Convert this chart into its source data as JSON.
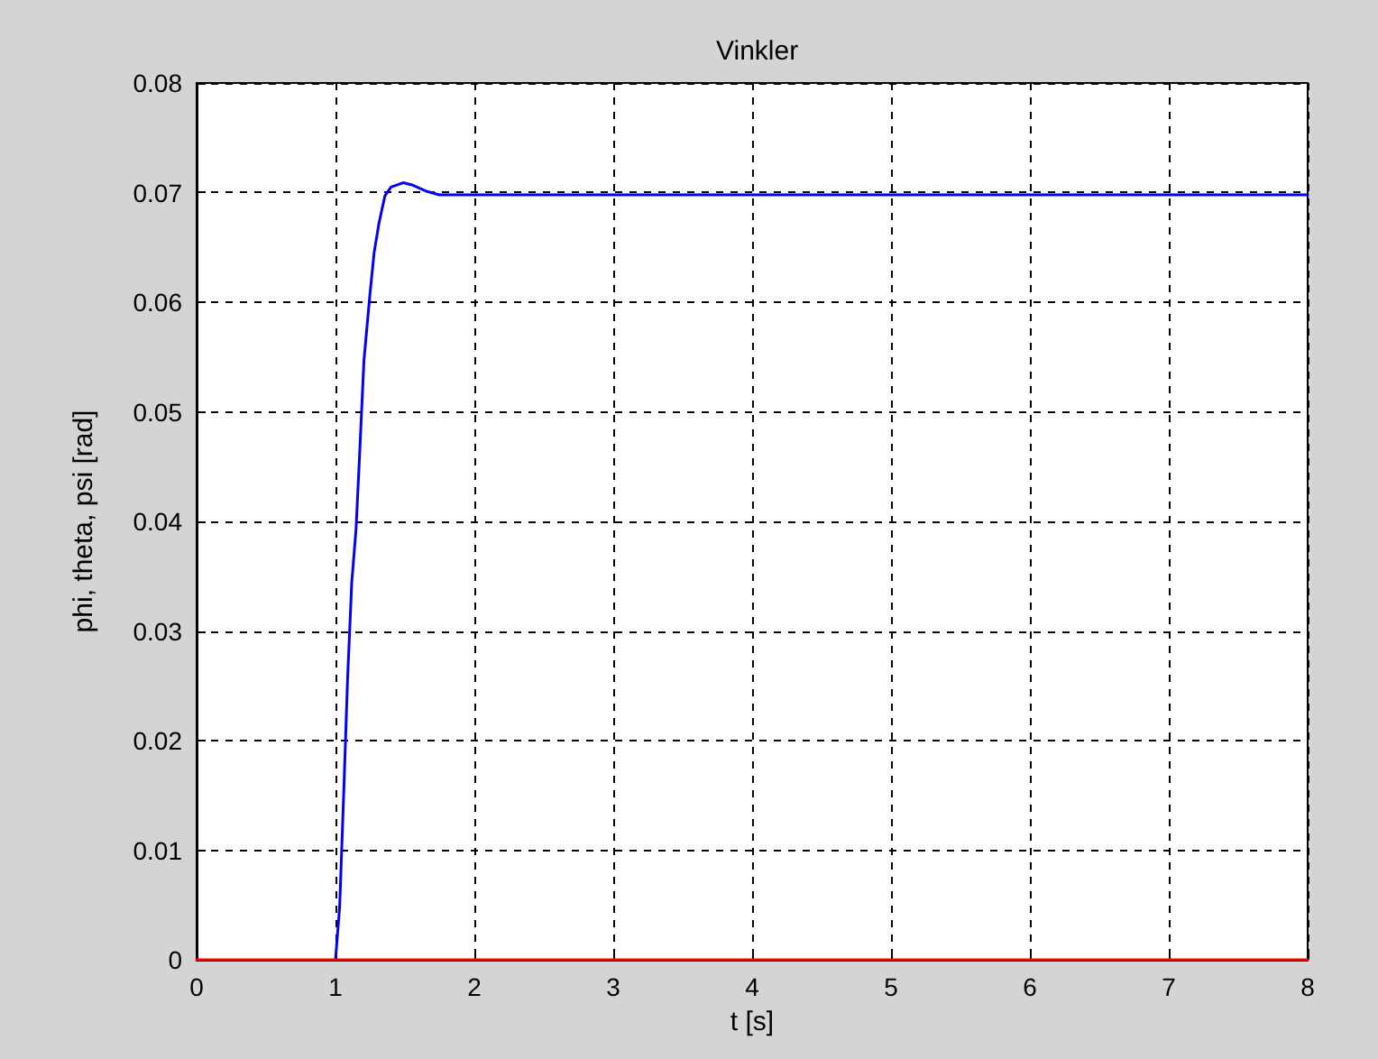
{
  "chart_data": {
    "type": "line",
    "title": "Vinkler",
    "xlabel": "t [s]",
    "ylabel": "phi, theta, psi [rad]",
    "series": [
      {
        "color": "#0000ff",
        "x": [
          1.0,
          1.03,
          1.061,
          1.087,
          1.117,
          1.148,
          1.173,
          1.205,
          1.248,
          1.278,
          1.313,
          1.356,
          1.4,
          1.487,
          1.55,
          1.66,
          1.747,
          2,
          3,
          4,
          5,
          6,
          7,
          8
        ],
        "values": [
          0,
          0.0048,
          0.0158,
          0.0256,
          0.0344,
          0.0393,
          0.0459,
          0.0547,
          0.0607,
          0.0645,
          0.0672,
          0.0697,
          0.0705,
          0.0709,
          0.0707,
          0.0701,
          0.0698,
          0.0698,
          0.0698,
          0.0698,
          0.0698,
          0.0698,
          0.0698,
          0.0698
        ]
      },
      {
        "color": "#ff0000",
        "x": [
          0,
          8
        ],
        "values": [
          0,
          0
        ]
      }
    ],
    "xlim": [
      0,
      8
    ],
    "xticks": [
      0,
      1,
      2,
      3,
      4,
      5,
      6,
      7,
      8
    ],
    "ylim": [
      0,
      0.08
    ],
    "yticks": [
      0,
      0.01,
      0.02,
      0.03,
      0.04,
      0.05,
      0.06,
      0.07,
      0.08
    ],
    "grid": true,
    "marker": "none",
    "line_style": "solid"
  }
}
